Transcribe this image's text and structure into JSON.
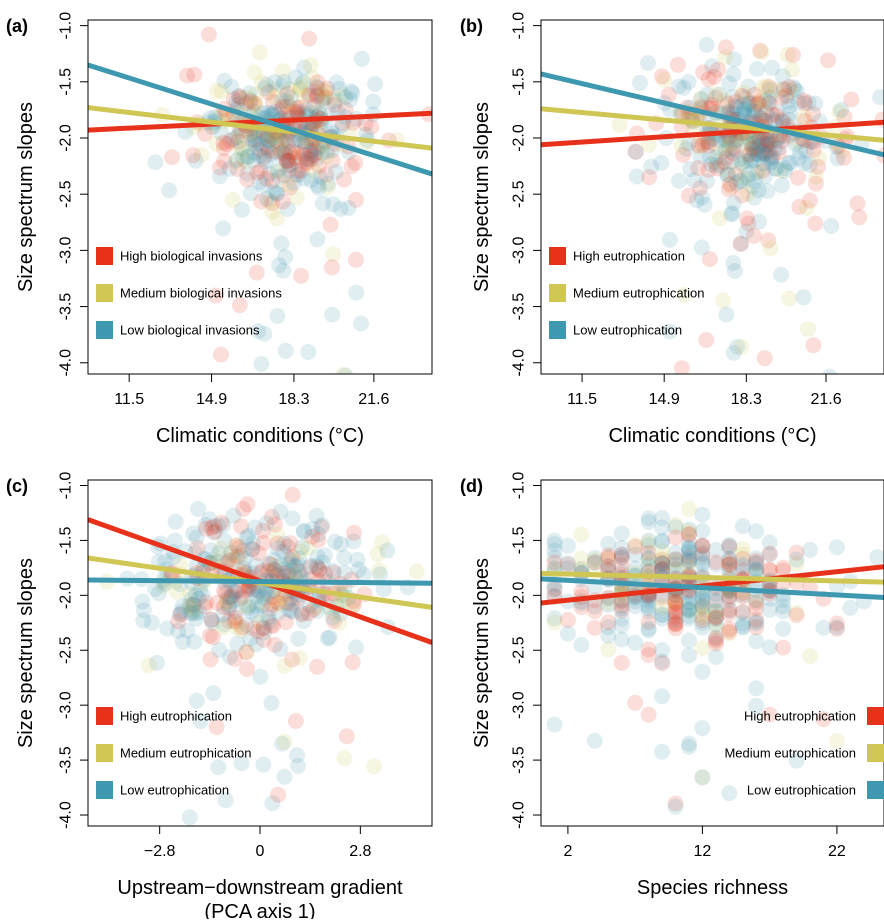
{
  "colors": {
    "high": "#e8311a",
    "medium": "#cfc653",
    "low": "#3d98b0"
  },
  "chart_data": [
    {
      "type": "scatter",
      "panel_tag": "(a)",
      "xlabel": "Climatic conditions (°C)",
      "xlabel2": "",
      "ylabel": "Size spectrum slopes",
      "xlim": [
        9.8,
        24.0
      ],
      "ylim": [
        -4.1,
        -0.95
      ],
      "x_ticks": [
        11.5,
        14.9,
        18.3,
        21.6
      ],
      "x_tick_labels": [
        "11.5",
        "14.9",
        "18.3",
        "21.6"
      ],
      "y_ticks": [
        -1.0,
        -1.5,
        -2.0,
        -2.5,
        -3.0,
        -3.5,
        -4.0
      ],
      "y_tick_labels": [
        "-1.0",
        "-1.5",
        "-2.0",
        "-2.5",
        "-3.0",
        "-3.5",
        "-4.0"
      ],
      "legend_position": "left",
      "series": [
        {
          "name": "High biological invasions",
          "color_key": "high",
          "line": [
            [
              9.8,
              -1.93
            ],
            [
              24.0,
              -1.78
            ]
          ]
        },
        {
          "name": "Medium biological invasions",
          "color_key": "medium",
          "line": [
            [
              9.8,
              -1.73
            ],
            [
              24.0,
              -2.09
            ]
          ]
        },
        {
          "name": "Low biological invasions",
          "color_key": "low",
          "line": [
            [
              9.8,
              -1.35
            ],
            [
              24.0,
              -2.32
            ]
          ]
        }
      ],
      "cloud": {
        "mode": "temp",
        "cx": 18.0,
        "sx": 1.8,
        "cy": -1.95,
        "sy": 0.3,
        "n": 420,
        "seed": 11
      }
    },
    {
      "type": "scatter",
      "panel_tag": "(b)",
      "xlabel": "Climatic conditions (°C)",
      "xlabel2": "",
      "ylabel": "Size spectrum slopes",
      "xlim": [
        9.8,
        24.0
      ],
      "ylim": [
        -4.1,
        -0.95
      ],
      "x_ticks": [
        11.5,
        14.9,
        18.3,
        21.6
      ],
      "x_tick_labels": [
        "11.5",
        "14.9",
        "18.3",
        "21.6"
      ],
      "y_ticks": [
        -1.0,
        -1.5,
        -2.0,
        -2.5,
        -3.0,
        -3.5,
        -4.0
      ],
      "y_tick_labels": [
        "-1.0",
        "-1.5",
        "-2.0",
        "-2.5",
        "-3.0",
        "-3.5",
        "-4.0"
      ],
      "legend_position": "left",
      "series": [
        {
          "name": "High eutrophication",
          "color_key": "high",
          "line": [
            [
              9.8,
              -2.06
            ],
            [
              24.0,
              -1.86
            ]
          ]
        },
        {
          "name": "Medium eutrophication",
          "color_key": "medium",
          "line": [
            [
              9.8,
              -1.74
            ],
            [
              24.0,
              -2.02
            ]
          ]
        },
        {
          "name": "Low eutrophication",
          "color_key": "low",
          "line": [
            [
              9.8,
              -1.43
            ],
            [
              24.0,
              -2.15
            ]
          ]
        }
      ],
      "cloud": {
        "mode": "temp",
        "cx": 18.3,
        "sx": 1.8,
        "cy": -1.95,
        "sy": 0.3,
        "n": 420,
        "seed": 23
      }
    },
    {
      "type": "scatter",
      "panel_tag": "(c)",
      "xlabel": "Upstream−downstream gradient",
      "xlabel2": "(PCA axis 1)",
      "ylabel": "Size spectrum slopes",
      "xlim": [
        -4.8,
        4.8
      ],
      "ylim": [
        -4.1,
        -0.95
      ],
      "x_ticks": [
        -2.8,
        0,
        2.8
      ],
      "x_tick_labels": [
        "−2.8",
        "0",
        "2.8"
      ],
      "y_ticks": [
        -1.0,
        -1.5,
        -2.0,
        -2.5,
        -3.0,
        -3.5,
        -4.0
      ],
      "y_tick_labels": [
        "-1.0",
        "-1.5",
        "-2.0",
        "-2.5",
        "-3.0",
        "-3.5",
        "-4.0"
      ],
      "legend_position": "left",
      "series": [
        {
          "name": "High eutrophication",
          "color_key": "high",
          "line": [
            [
              -4.8,
              -1.31
            ],
            [
              4.8,
              -2.43
            ]
          ]
        },
        {
          "name": "Medium eutrophication",
          "color_key": "medium",
          "line": [
            [
              -4.8,
              -1.66
            ],
            [
              4.8,
              -2.11
            ]
          ]
        },
        {
          "name": "Low eutrophication",
          "color_key": "low",
          "line": [
            [
              -4.8,
              -1.86
            ],
            [
              4.8,
              -1.89
            ]
          ]
        }
      ],
      "cloud": {
        "mode": "pca",
        "cx": 0.0,
        "sx": 1.6,
        "cy": -1.9,
        "sy": 0.3,
        "n": 420,
        "seed": 37
      }
    },
    {
      "type": "scatter",
      "panel_tag": "(d)",
      "xlabel": "Species richness",
      "xlabel2": "",
      "ylabel": "Size spectrum slopes",
      "xlim": [
        0.0,
        25.5
      ],
      "ylim": [
        -4.1,
        -0.95
      ],
      "x_ticks": [
        2,
        12,
        22
      ],
      "x_tick_labels": [
        "2",
        "12",
        "22"
      ],
      "y_ticks": [
        -1.0,
        -1.5,
        -2.0,
        -2.5,
        -3.0,
        -3.5,
        -4.0
      ],
      "y_tick_labels": [
        "-1.0",
        "-1.5",
        "-2.0",
        "-2.5",
        "-3.0",
        "-3.5",
        "-4.0"
      ],
      "legend_position": "right",
      "series": [
        {
          "name": "High eutrophication",
          "color_key": "high",
          "line": [
            [
              0.0,
              -2.07
            ],
            [
              25.5,
              -1.74
            ]
          ]
        },
        {
          "name": "Medium eutrophication",
          "color_key": "medium",
          "line": [
            [
              0.0,
              -1.8
            ],
            [
              25.5,
              -1.88
            ]
          ]
        },
        {
          "name": "Low eutrophication",
          "color_key": "low",
          "line": [
            [
              0.0,
              -1.85
            ],
            [
              25.5,
              -2.02
            ]
          ]
        }
      ],
      "cloud": {
        "mode": "rich",
        "cx": 11.0,
        "sx": 5.0,
        "cy": -1.9,
        "sy": 0.28,
        "n": 440,
        "seed": 53
      }
    }
  ]
}
